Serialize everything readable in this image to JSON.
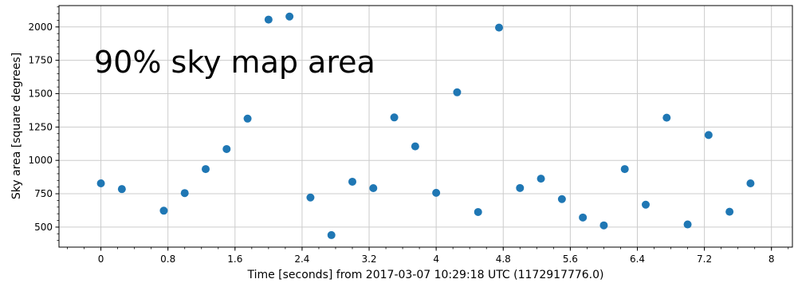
{
  "chart_data": {
    "type": "scatter",
    "title": "",
    "annotation": "90% sky map area",
    "xlabel": "Time [seconds] from 2017-03-07 10:29:18 UTC (1172917776.0)",
    "ylabel": "Sky area [square degrees]",
    "xlim": [
      -0.5,
      8.25
    ],
    "ylim": [
      350,
      2160
    ],
    "x_ticks": [
      0,
      0.8,
      1.6,
      2.4,
      3.2,
      4,
      4.8,
      5.6,
      6.4,
      7.2,
      8
    ],
    "x_tick_labels": [
      "0",
      "0.8",
      "1.6",
      "2.4",
      "3.2",
      "4",
      "4.8",
      "5.6",
      "6.4",
      "7.2",
      "8"
    ],
    "y_ticks": [
      500,
      750,
      1000,
      1250,
      1500,
      1750,
      2000
    ],
    "y_tick_labels": [
      "500",
      "750",
      "1000",
      "1250",
      "1500",
      "1750",
      "2000"
    ],
    "grid": true,
    "marker_color": "#1f77b4",
    "points": [
      {
        "x": 0.0,
        "y": 828
      },
      {
        "x": 0.25,
        "y": 785
      },
      {
        "x": 0.75,
        "y": 623
      },
      {
        "x": 1.0,
        "y": 755
      },
      {
        "x": 1.25,
        "y": 935
      },
      {
        "x": 1.5,
        "y": 1085
      },
      {
        "x": 1.75,
        "y": 1313
      },
      {
        "x": 2.0,
        "y": 2055
      },
      {
        "x": 2.25,
        "y": 2078
      },
      {
        "x": 2.5,
        "y": 722
      },
      {
        "x": 2.75,
        "y": 440
      },
      {
        "x": 3.0,
        "y": 840
      },
      {
        "x": 3.25,
        "y": 792
      },
      {
        "x": 3.5,
        "y": 1322
      },
      {
        "x": 3.75,
        "y": 1105
      },
      {
        "x": 4.0,
        "y": 757
      },
      {
        "x": 4.25,
        "y": 1510
      },
      {
        "x": 4.5,
        "y": 613
      },
      {
        "x": 4.75,
        "y": 1995
      },
      {
        "x": 5.0,
        "y": 793
      },
      {
        "x": 5.25,
        "y": 863
      },
      {
        "x": 5.5,
        "y": 710
      },
      {
        "x": 5.75,
        "y": 572
      },
      {
        "x": 6.0,
        "y": 513
      },
      {
        "x": 6.25,
        "y": 935
      },
      {
        "x": 6.5,
        "y": 668
      },
      {
        "x": 6.75,
        "y": 1320
      },
      {
        "x": 7.0,
        "y": 520
      },
      {
        "x": 7.25,
        "y": 1190
      },
      {
        "x": 7.5,
        "y": 615
      },
      {
        "x": 7.75,
        "y": 828
      }
    ]
  }
}
